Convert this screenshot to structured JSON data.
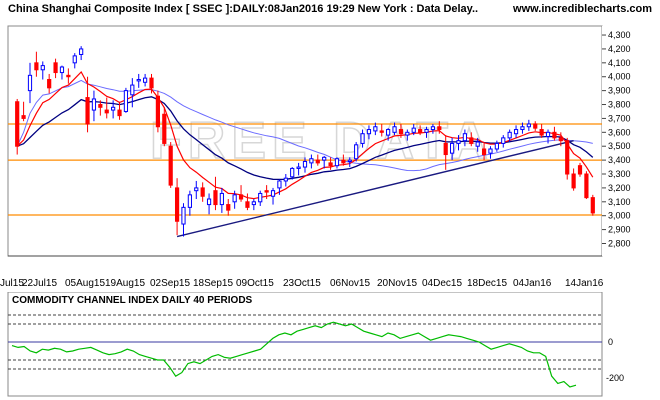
{
  "header": {
    "title": "China Shanghai Composite Index [ SSEC ]:DAILY:08Jan2016 19:29 New York : Data Delay..",
    "site": "www.incrediblecharts.com"
  },
  "watermark": "FREE DATA",
  "colors": {
    "up_candle": "#0000ff",
    "down_candle": "#ff0000",
    "ma_short": "#ff0000",
    "ma_long": "#000080",
    "ma_slow": "#6b6bff",
    "trendline": "#1a1a80",
    "support_lines": "#ff8c00",
    "cci_line": "#00bb00",
    "cci_band": "#404040",
    "axis_band": "#c8c8c8"
  },
  "chart_data": [
    {
      "type": "candlestick",
      "title": "China Shanghai Composite Index [ SSEC ]:DAILY:08Jan2016 19:29 New York : Data Delay..",
      "y_ticks": [
        2800,
        2900,
        3000,
        3100,
        3200,
        3300,
        3400,
        3500,
        3600,
        3700,
        3800,
        3900,
        4000,
        4100,
        4200,
        4300
      ],
      "ylim": [
        2710,
        4365
      ],
      "x_tick_labels": [
        "Jul15",
        "22Jul15",
        "05Aug15",
        "19Aug15",
        "02Sep15",
        "18Sep15",
        "09Oct15",
        "23Oct15",
        "06Nov15",
        "20Nov15",
        "04Dec15",
        "18Dec15",
        "04Jan16",
        "14Jan16"
      ],
      "horizontal_levels": [
        3660,
        3400,
        3005
      ],
      "trendline": {
        "from": {
          "x": "24Aug15",
          "y": 2850
        },
        "to": {
          "x": "04Jan16",
          "y": 3540
        }
      },
      "candles": [
        [
          3820,
          3840,
          3440,
          3500
        ],
        [
          3720,
          3820,
          3680,
          3700
        ],
        [
          3900,
          4100,
          3810,
          4010
        ],
        [
          4100,
          4180,
          4000,
          4050
        ],
        [
          4050,
          4110,
          3980,
          4080
        ],
        [
          3980,
          4020,
          3880,
          3920
        ],
        [
          4100,
          4130,
          3990,
          4030
        ],
        [
          4030,
          4080,
          3980,
          4070
        ],
        [
          4010,
          4060,
          3950,
          4000
        ],
        [
          4100,
          4170,
          4060,
          4150
        ],
        [
          4160,
          4220,
          4120,
          4200
        ],
        [
          3850,
          4000,
          3600,
          3660
        ],
        [
          3760,
          3900,
          3680,
          3840
        ],
        [
          3800,
          3830,
          3720,
          3780
        ],
        [
          3760,
          3850,
          3700,
          3740
        ],
        [
          3760,
          3830,
          3700,
          3780
        ],
        [
          3760,
          3820,
          3690,
          3720
        ],
        [
          3750,
          3920,
          3740,
          3900
        ],
        [
          3870,
          3990,
          3780,
          3940
        ],
        [
          3970,
          4020,
          3920,
          3980
        ],
        [
          3960,
          4020,
          3930,
          3990
        ],
        [
          3990,
          4020,
          3880,
          3920
        ],
        [
          3860,
          3900,
          3600,
          3640
        ],
        [
          3730,
          3780,
          3500,
          3520
        ],
        [
          3500,
          3530,
          3200,
          3220
        ],
        [
          3200,
          3270,
          2860,
          2960
        ],
        [
          2940,
          3090,
          2850,
          3060
        ],
        [
          3060,
          3180,
          3000,
          3150
        ],
        [
          3180,
          3250,
          3120,
          3200
        ],
        [
          3200,
          3240,
          3100,
          3140
        ],
        [
          3080,
          3160,
          3010,
          3120
        ],
        [
          3180,
          3280,
          3040,
          3080
        ],
        [
          3080,
          3200,
          3020,
          3160
        ],
        [
          3080,
          3120,
          3000,
          3040
        ],
        [
          3100,
          3180,
          3050,
          3150
        ],
        [
          3150,
          3220,
          3100,
          3120
        ],
        [
          3100,
          3160,
          3040,
          3060
        ],
        [
          3080,
          3120,
          3040,
          3100
        ],
        [
          3100,
          3180,
          3070,
          3160
        ],
        [
          3180,
          3220,
          3120,
          3170
        ],
        [
          3140,
          3200,
          3080,
          3180
        ],
        [
          3200,
          3260,
          3150,
          3250
        ],
        [
          3250,
          3300,
          3210,
          3270
        ],
        [
          3280,
          3350,
          3260,
          3340
        ],
        [
          3340,
          3380,
          3290,
          3350
        ],
        [
          3350,
          3420,
          3310,
          3390
        ],
        [
          3380,
          3440,
          3340,
          3410
        ],
        [
          3400,
          3440,
          3360,
          3380
        ],
        [
          3400,
          3430,
          3340,
          3420
        ],
        [
          3380,
          3420,
          3330,
          3360
        ],
        [
          3360,
          3420,
          3340,
          3410
        ],
        [
          3400,
          3440,
          3360,
          3380
        ],
        [
          3390,
          3420,
          3350,
          3400
        ],
        [
          3410,
          3530,
          3390,
          3510
        ],
        [
          3520,
          3620,
          3490,
          3590
        ],
        [
          3590,
          3650,
          3550,
          3620
        ],
        [
          3610,
          3670,
          3580,
          3640
        ],
        [
          3610,
          3660,
          3570,
          3600
        ],
        [
          3580,
          3630,
          3540,
          3620
        ],
        [
          3600,
          3670,
          3580,
          3640
        ],
        [
          3620,
          3660,
          3560,
          3590
        ],
        [
          3580,
          3620,
          3540,
          3600
        ],
        [
          3600,
          3660,
          3580,
          3630
        ],
        [
          3620,
          3650,
          3580,
          3600
        ],
        [
          3600,
          3640,
          3560,
          3620
        ],
        [
          3620,
          3660,
          3590,
          3640
        ],
        [
          3640,
          3680,
          3590,
          3620
        ],
        [
          3520,
          3580,
          3330,
          3440
        ],
        [
          3450,
          3560,
          3400,
          3520
        ],
        [
          3520,
          3580,
          3470,
          3540
        ],
        [
          3540,
          3620,
          3500,
          3590
        ],
        [
          3560,
          3600,
          3500,
          3520
        ],
        [
          3500,
          3560,
          3460,
          3530
        ],
        [
          3480,
          3520,
          3400,
          3440
        ],
        [
          3450,
          3500,
          3410,
          3480
        ],
        [
          3480,
          3540,
          3460,
          3520
        ],
        [
          3520,
          3580,
          3490,
          3560
        ],
        [
          3560,
          3620,
          3530,
          3600
        ],
        [
          3590,
          3650,
          3560,
          3620
        ],
        [
          3620,
          3670,
          3590,
          3640
        ],
        [
          3640,
          3690,
          3610,
          3660
        ],
        [
          3660,
          3680,
          3610,
          3630
        ],
        [
          3620,
          3660,
          3560,
          3580
        ],
        [
          3570,
          3620,
          3520,
          3600
        ],
        [
          3600,
          3640,
          3540,
          3560
        ],
        [
          3560,
          3600,
          3500,
          3540
        ],
        [
          3540,
          3560,
          3260,
          3300
        ],
        [
          3300,
          3340,
          3180,
          3200
        ],
        [
          3360,
          3380,
          3280,
          3300
        ],
        [
          3300,
          3320,
          3120,
          3130
        ],
        [
          3130,
          3150,
          3000,
          3020
        ]
      ]
    },
    {
      "type": "line",
      "title": "COMMODITY CHANNEL INDEX DAILY 40 PERIODS",
      "y_tick_labels": [
        "0",
        "-200"
      ],
      "y_ticks": [
        0,
        -200
      ],
      "ylim": [
        -300,
        200
      ],
      "dashed_levels": [
        150,
        100,
        -100,
        -150
      ],
      "solid_levels": [
        0
      ],
      "values": [
        -20,
        -30,
        -25,
        -50,
        -60,
        -40,
        -45,
        -35,
        -40,
        -55,
        -50,
        -40,
        -35,
        -30,
        -45,
        -60,
        -70,
        -65,
        -55,
        -40,
        -50,
        -70,
        -80,
        -90,
        -100,
        -100,
        -140,
        -190,
        -170,
        -120,
        -110,
        -120,
        -100,
        -80,
        -70,
        -85,
        -90,
        -80,
        -70,
        -60,
        -50,
        -40,
        -10,
        20,
        40,
        50,
        40,
        60,
        70,
        80,
        90,
        80,
        100,
        110,
        100,
        90,
        100,
        80,
        60,
        50,
        40,
        30,
        50,
        40,
        20,
        30,
        40,
        50,
        30,
        10,
        20,
        30,
        40,
        35,
        30,
        20,
        10,
        0,
        -20,
        -40,
        -30,
        -20,
        -10,
        -20,
        -30,
        -50,
        -60,
        -60,
        -80,
        -190,
        -230,
        -220,
        -250,
        -240
      ]
    }
  ]
}
